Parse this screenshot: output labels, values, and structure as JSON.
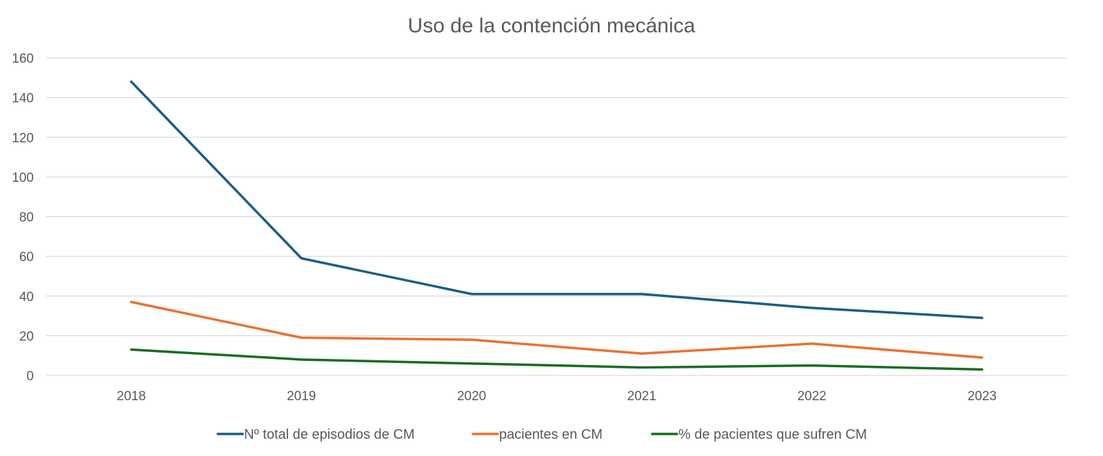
{
  "chart_data": {
    "type": "line",
    "title": "Uso de la contención mecánica",
    "xlabel": "",
    "ylabel": "",
    "categories": [
      "2018",
      "2019",
      "2020",
      "2021",
      "2022",
      "2023"
    ],
    "ylim": [
      0,
      160
    ],
    "yticks": [
      "0",
      "20",
      "40",
      "60",
      "80",
      "100",
      "120",
      "140",
      "160"
    ],
    "grid": true,
    "legend_position": "bottom",
    "series": [
      {
        "name": "Nº total de episodios de CM",
        "color": "#1a5e83",
        "values": [
          148,
          59,
          41,
          41,
          34,
          29
        ]
      },
      {
        "name": "pacientes en CM",
        "color": "#e97132",
        "values": [
          37,
          19,
          18,
          11,
          16,
          9
        ]
      },
      {
        "name": "% de pacientes que sufren CM",
        "color": "#196b24",
        "values": [
          13,
          8,
          6,
          4,
          5,
          3
        ]
      }
    ]
  }
}
